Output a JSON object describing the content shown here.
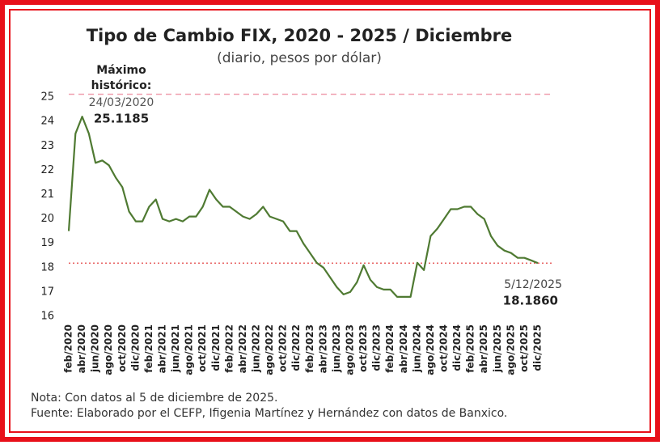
{
  "chart_data": {
    "type": "line",
    "title": "Tipo de Cambio FIX, 2020 - 2025 / Diciembre",
    "subtitle": "(diario, pesos por dólar)",
    "categories": [
      "feb/2020",
      null,
      "abr/2020",
      null,
      "jun/2020",
      null,
      "ago/2020",
      null,
      "oct/2020",
      null,
      "dic/2020",
      null,
      "feb/2021",
      null,
      "abr/2021",
      null,
      "jun/2021",
      null,
      "ago/2021",
      null,
      "oct/2021",
      null,
      "dic/2021",
      null,
      "feb/2022",
      null,
      "abr/2022",
      null,
      "jun/2022",
      null,
      "ago/2022",
      null,
      "oct/2022",
      null,
      "dic/2022",
      null,
      "feb/2023",
      null,
      "abr/2023",
      null,
      "jun/2023",
      null,
      "ago/2023",
      null,
      "oct/2023",
      null,
      "dic/2023",
      null,
      "feb/2024",
      null,
      "abr/2024",
      null,
      "jun/2024",
      null,
      "ago/2024",
      null,
      "oct/2024",
      null,
      "dic/2024",
      null,
      "feb/2025",
      null,
      "abr/2025",
      null,
      "jun/2025",
      null,
      "ago/2025",
      null,
      "oct/2025",
      null,
      "dic/2025"
    ],
    "series": [
      {
        "name": "Tipo de cambio FIX",
        "color": "#4f7a32",
        "values": [
          19.5,
          23.5,
          24.2,
          23.5,
          22.3,
          22.4,
          22.2,
          21.7,
          21.3,
          20.3,
          19.9,
          19.9,
          20.5,
          20.8,
          20.0,
          19.9,
          20.0,
          19.9,
          20.1,
          20.1,
          20.5,
          21.2,
          20.8,
          20.5,
          20.5,
          20.3,
          20.1,
          20.0,
          20.2,
          20.5,
          20.1,
          20.0,
          19.9,
          19.5,
          19.5,
          19.0,
          18.6,
          18.2,
          18.0,
          17.6,
          17.2,
          16.9,
          17.0,
          17.4,
          18.1,
          17.5,
          17.2,
          17.1,
          17.1,
          16.8,
          16.8,
          16.8,
          18.2,
          17.9,
          19.3,
          19.6,
          20.0,
          20.4,
          20.4,
          20.5,
          20.5,
          20.2,
          20.0,
          19.3,
          18.9,
          18.7,
          18.6,
          18.4,
          18.4,
          18.3,
          18.186
        ]
      }
    ],
    "ylim": [
      16,
      25.5
    ],
    "yticks": [
      16,
      17,
      18,
      19,
      20,
      21,
      22,
      23,
      24,
      25
    ],
    "max_annotation": {
      "label": [
        "Máximo",
        "histórico:"
      ],
      "date": "24/03/2020",
      "value": 25.1185
    },
    "last_annotation": {
      "date": "5/12/2025",
      "value": {
        "value": 18.186,
        "label": "18.1860"
      }
    },
    "note": "Nota: Con datos al 5 de diciembre de 2025.",
    "source": "Fuente: Elaborado por el CEFP, Ifigenia Martínez y Hernández con datos de Banxico."
  }
}
